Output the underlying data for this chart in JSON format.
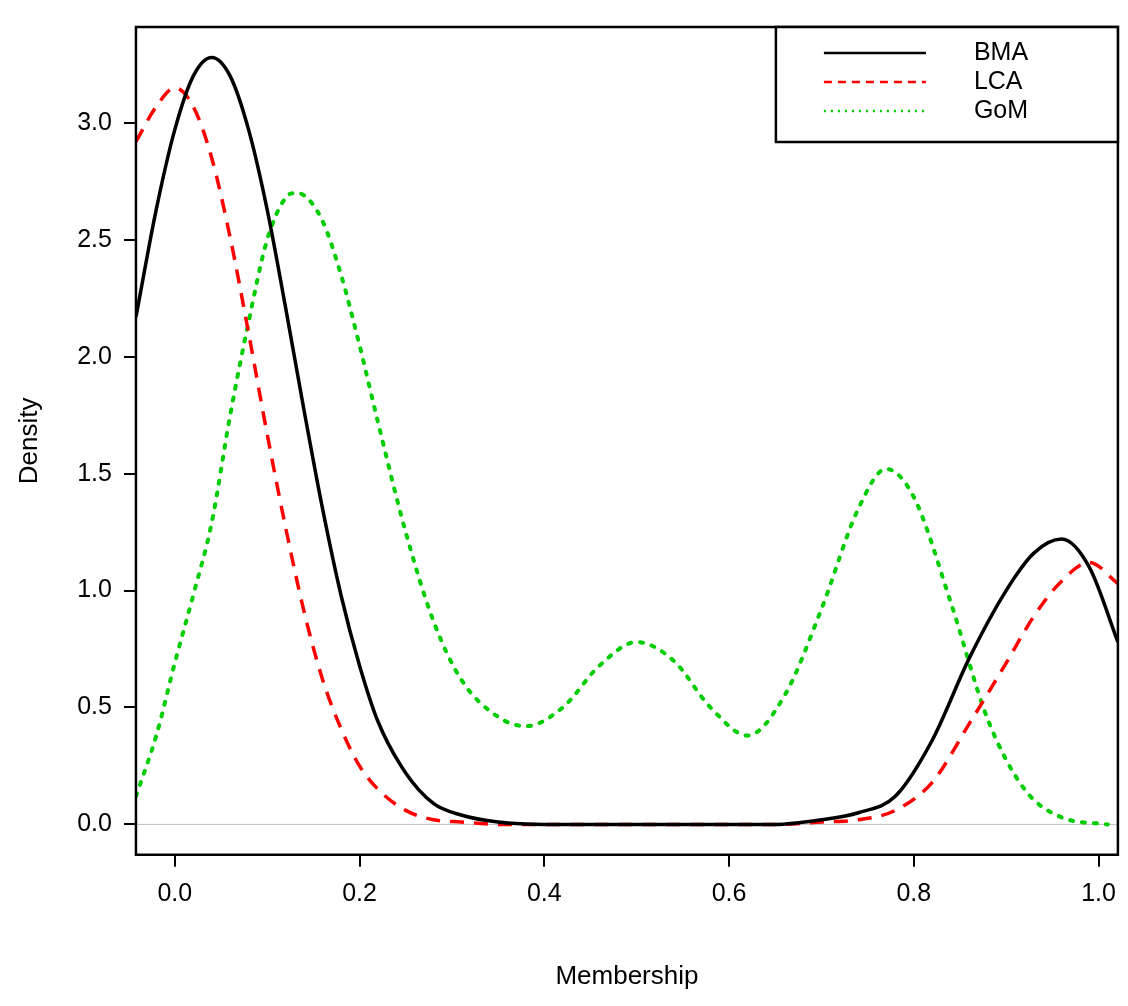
{
  "chart_data": {
    "type": "line",
    "xlabel": "Membership",
    "ylabel": "Density",
    "x": [
      -0.042,
      -0.02,
      0,
      0.02,
      0.04,
      0.06,
      0.08,
      0.1,
      0.12,
      0.14,
      0.16,
      0.18,
      0.2,
      0.22,
      0.25,
      0.28,
      0.31,
      0.35,
      0.4,
      0.5,
      0.6,
      0.65,
      0.7,
      0.74,
      0.78,
      0.82,
      0.86,
      0.9,
      0.93,
      0.96,
      0.99,
      1.021
    ],
    "series": [
      {
        "name": "BMA",
        "color": "#000000",
        "line_style": "solid",
        "values": [
          2.17,
          2.63,
          2.97,
          3.2,
          3.28,
          3.2,
          2.97,
          2.63,
          2.21,
          1.77,
          1.35,
          0.98,
          0.68,
          0.44,
          0.22,
          0.09,
          0.04,
          0.01,
          0,
          0,
          0,
          0,
          0.02,
          0.05,
          0.12,
          0.36,
          0.71,
          1.0,
          1.16,
          1.22,
          1.1,
          0.78
        ]
      },
      {
        "name": "LCA",
        "color": "#ff0000",
        "line_style": "dashed",
        "values": [
          2.92,
          3.07,
          3.15,
          3.07,
          2.85,
          2.51,
          2.1,
          1.67,
          1.27,
          0.91,
          0.62,
          0.41,
          0.25,
          0.15,
          0.06,
          0.02,
          0.01,
          0,
          0,
          0,
          0,
          0,
          0.01,
          0.02,
          0.06,
          0.18,
          0.43,
          0.69,
          0.89,
          1.04,
          1.12,
          1.03
        ]
      },
      {
        "name": "GoM",
        "color": "#00cd00",
        "line_style": "dotted",
        "x": [
          -0.042,
          -0.02,
          0,
          0.02,
          0.04,
          0.06,
          0.08,
          0.1,
          0.12,
          0.13,
          0.14,
          0.16,
          0.18,
          0.2,
          0.22,
          0.25,
          0.28,
          0.31,
          0.35,
          0.38,
          0.42,
          0.46,
          0.5,
          0.54,
          0.58,
          0.62,
          0.66,
          0.7,
          0.74,
          0.77,
          0.8,
          0.84,
          0.88,
          0.92,
          0.96,
          1.01
        ],
        "values": [
          0.12,
          0.38,
          0.69,
          0.98,
          1.29,
          1.75,
          2.15,
          2.5,
          2.68,
          2.7,
          2.69,
          2.58,
          2.35,
          2.05,
          1.72,
          1.25,
          0.87,
          0.62,
          0.46,
          0.42,
          0.5,
          0.68,
          0.78,
          0.7,
          0.5,
          0.38,
          0.55,
          0.92,
          1.35,
          1.52,
          1.4,
          0.95,
          0.45,
          0.15,
          0.03,
          0
        ]
      }
    ],
    "xlim": [
      -0.042,
      1.021
    ],
    "xticks": [
      {
        "value": 0,
        "label": "0.0"
      },
      0.2,
      0.4,
      0.6,
      0.8,
      {
        "value": 1,
        "label": "1.0"
      }
    ],
    "ylim": [
      -0.13,
      3.41
    ],
    "yticks": [
      {
        "value": 0,
        "label": "0.0"
      },
      0.5,
      {
        "value": 1,
        "label": "1.0"
      },
      1.5,
      {
        "value": 2,
        "label": "2.0"
      },
      2.5,
      {
        "value": 3,
        "label": "3.0"
      }
    ],
    "ref_lines": [
      {
        "axis": "y",
        "value": 0,
        "color": "#bebebe"
      }
    ],
    "grid": false,
    "legend": "top right"
  }
}
